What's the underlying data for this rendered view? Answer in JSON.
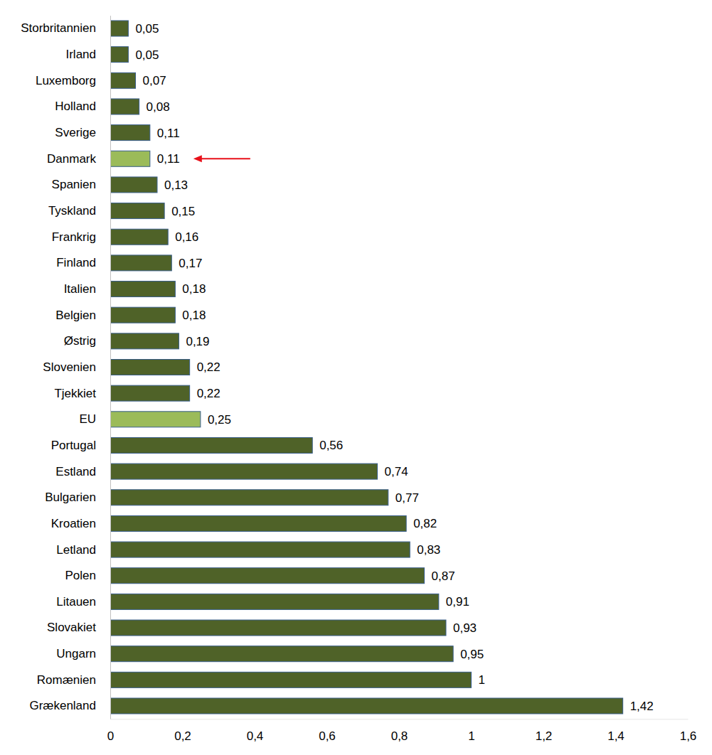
{
  "chart_data": {
    "type": "bar",
    "orientation": "horizontal",
    "data_labels": true,
    "grid": false,
    "categories": [
      "Storbritannien",
      "Irland",
      "Luxemborg",
      "Holland",
      "Sverige",
      "Danmark",
      "Spanien",
      "Tyskland",
      "Frankrig",
      "Finland",
      "Italien",
      "Belgien",
      "Østrig",
      "Slovenien",
      "Tjekkiet",
      "EU",
      "Portugal",
      "Estland",
      "Bulgarien",
      "Kroatien",
      "Letland",
      "Polen",
      "Litauen",
      "Slovakiet",
      "Ungarn",
      "Romænien",
      "Grækenland"
    ],
    "values": [
      0.05,
      0.05,
      0.07,
      0.08,
      0.11,
      0.11,
      0.13,
      0.15,
      0.16,
      0.17,
      0.18,
      0.18,
      0.19,
      0.22,
      0.22,
      0.25,
      0.56,
      0.74,
      0.77,
      0.82,
      0.83,
      0.87,
      0.91,
      0.93,
      0.95,
      1,
      1.42
    ],
    "value_labels": [
      "0,05",
      "0,05",
      "0,07",
      "0,08",
      "0,11",
      "0,11",
      "0,13",
      "0,15",
      "0,16",
      "0,17",
      "0,18",
      "0,18",
      "0,19",
      "0,22",
      "0,22",
      "0,25",
      "0,56",
      "0,74",
      "0,77",
      "0,82",
      "0,83",
      "0,87",
      "0,91",
      "0,93",
      "0,95",
      "1",
      "1,42"
    ],
    "colors": [
      "#4f6228",
      "#4f6228",
      "#4f6228",
      "#4f6228",
      "#4f6228",
      "#9bbb59",
      "#4f6228",
      "#4f6228",
      "#4f6228",
      "#4f6228",
      "#4f6228",
      "#4f6228",
      "#4f6228",
      "#4f6228",
      "#4f6228",
      "#9bbb59",
      "#4f6228",
      "#4f6228",
      "#4f6228",
      "#4f6228",
      "#4f6228",
      "#4f6228",
      "#4f6228",
      "#4f6228",
      "#4f6228",
      "#4f6228",
      "#4f6228"
    ],
    "xlim": [
      0,
      1.6
    ],
    "xticks": [
      0,
      {
        "value": 0.2,
        "label": "0,2"
      },
      {
        "value": 0.4,
        "label": "0,4"
      },
      {
        "value": 0.6,
        "label": "0,6"
      },
      {
        "value": 0.8,
        "label": "0,8"
      },
      1,
      {
        "value": 1.2,
        "label": "1,2"
      },
      {
        "value": 1.4,
        "label": "1,4"
      },
      {
        "value": 1.6,
        "label": "1,6"
      }
    ]
  }
}
